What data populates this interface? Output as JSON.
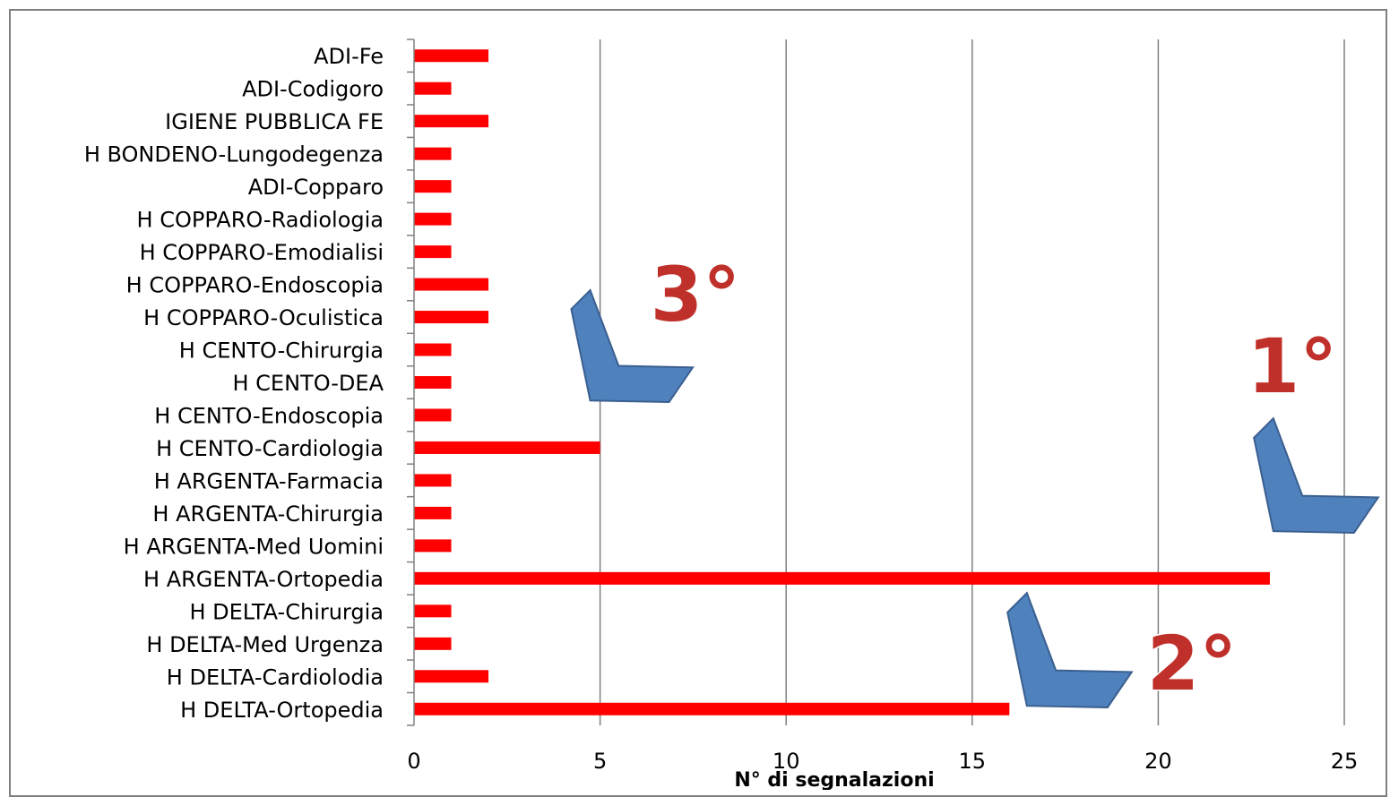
{
  "chart_data": {
    "type": "bar",
    "orientation": "horizontal",
    "categories": [
      "ADI-Fe",
      "ADI-Codigoro",
      "IGIENE PUBBLICA FE",
      "H BONDENO-Lungodegenza",
      "ADI-Copparo",
      "H COPPARO-Radiologia",
      "H COPPARO-Emodialisi",
      "H COPPARO-Endoscopia",
      "H COPPARO-Oculistica",
      "H CENTO-Chirurgia",
      "H CENTO-DEA",
      "H CENTO-Endoscopia",
      "H CENTO-Cardiologia",
      "H ARGENTA-Farmacia",
      "H ARGENTA-Chirurgia",
      "H ARGENTA-Med Uomini",
      "H ARGENTA-Ortopedia",
      "H DELTA-Chirurgia",
      "H DELTA-Med Urgenza",
      "H DELTA-Cardiolodia",
      "H DELTA-Ortopedia"
    ],
    "values": [
      2,
      1,
      2,
      1,
      1,
      1,
      1,
      2,
      2,
      1,
      1,
      1,
      5,
      1,
      1,
      1,
      23,
      1,
      1,
      2,
      16
    ],
    "xlabel": "N° di segnalazioni",
    "xlim": [
      0,
      25
    ],
    "xticks": [
      0,
      5,
      10,
      15,
      20,
      25
    ],
    "grid": "vertical",
    "legend": "none",
    "bar_color": "#ff0000",
    "annotations": [
      {
        "text": "1°",
        "target": "H ARGENTA-Ortopedia"
      },
      {
        "text": "2°",
        "target": "H DELTA-Ortopedia"
      },
      {
        "text": "3°",
        "target": "H CENTO-Cardiologia"
      }
    ]
  },
  "colors": {
    "bar": "#ff0000",
    "grid": "#808080",
    "arrow_fill": "#4f81bd",
    "arrow_stroke": "#3a5f8f",
    "rank_text": "#c0302a"
  }
}
